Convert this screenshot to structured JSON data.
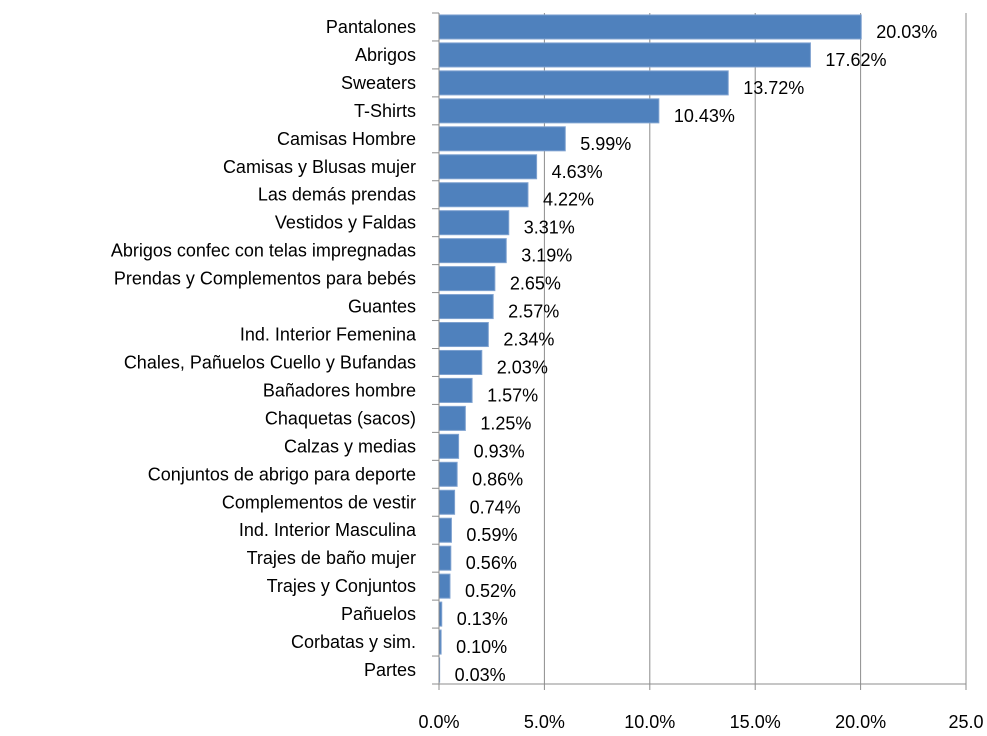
{
  "chart_data": {
    "type": "hbar",
    "categories": [
      "Pantalones",
      "Abrigos",
      "Sweaters",
      "T-Shirts",
      "Camisas Hombre",
      "Camisas y Blusas mujer",
      "Las demás prendas",
      "Vestidos y Faldas",
      "Abrigos confec con telas impregnadas",
      "Prendas y Complementos  para bebés",
      "Guantes",
      "Ind. Interior Femenina",
      "Chales, Pañuelos Cuello y Bufandas",
      "Bañadores hombre",
      "Chaquetas (sacos)",
      "Calzas y medias",
      "Conjuntos de abrigo para deporte",
      "Complementos de vestir",
      "Ind. Interior Masculina",
      "Trajes de baño mujer",
      "Trajes y Conjuntos",
      "Pañuelos",
      "Corbatas y sim.",
      "Partes"
    ],
    "values": [
      20.03,
      17.62,
      13.72,
      10.43,
      5.99,
      4.63,
      4.22,
      3.31,
      3.19,
      2.65,
      2.57,
      2.34,
      2.03,
      1.57,
      1.25,
      0.93,
      0.86,
      0.74,
      0.59,
      0.56,
      0.52,
      0.13,
      0.1,
      0.03
    ],
    "value_labels": [
      "20.03%",
      "17.62%",
      "13.72%",
      "10.43%",
      "5.99%",
      "4.63%",
      "4.22%",
      "3.31%",
      "3.19%",
      "2.65%",
      "2.57%",
      "2.34%",
      "2.03%",
      "1.57%",
      "1.25%",
      "0.93%",
      "0.86%",
      "0.74%",
      "0.59%",
      "0.56%",
      "0.52%",
      "0.13%",
      "0.10%",
      "0.03%"
    ],
    "color": "#4f81bd",
    "xlim": [
      0,
      25
    ],
    "xticks": [
      {
        "value": 0,
        "label": "0.0%"
      },
      {
        "value": 5,
        "label": "5.0%"
      },
      {
        "value": 10,
        "label": "10.0%"
      },
      {
        "value": 15,
        "label": "15.0%"
      },
      {
        "value": 20,
        "label": "20.0%"
      },
      {
        "value": 25,
        "label": "25.0"
      }
    ],
    "grid": true
  }
}
